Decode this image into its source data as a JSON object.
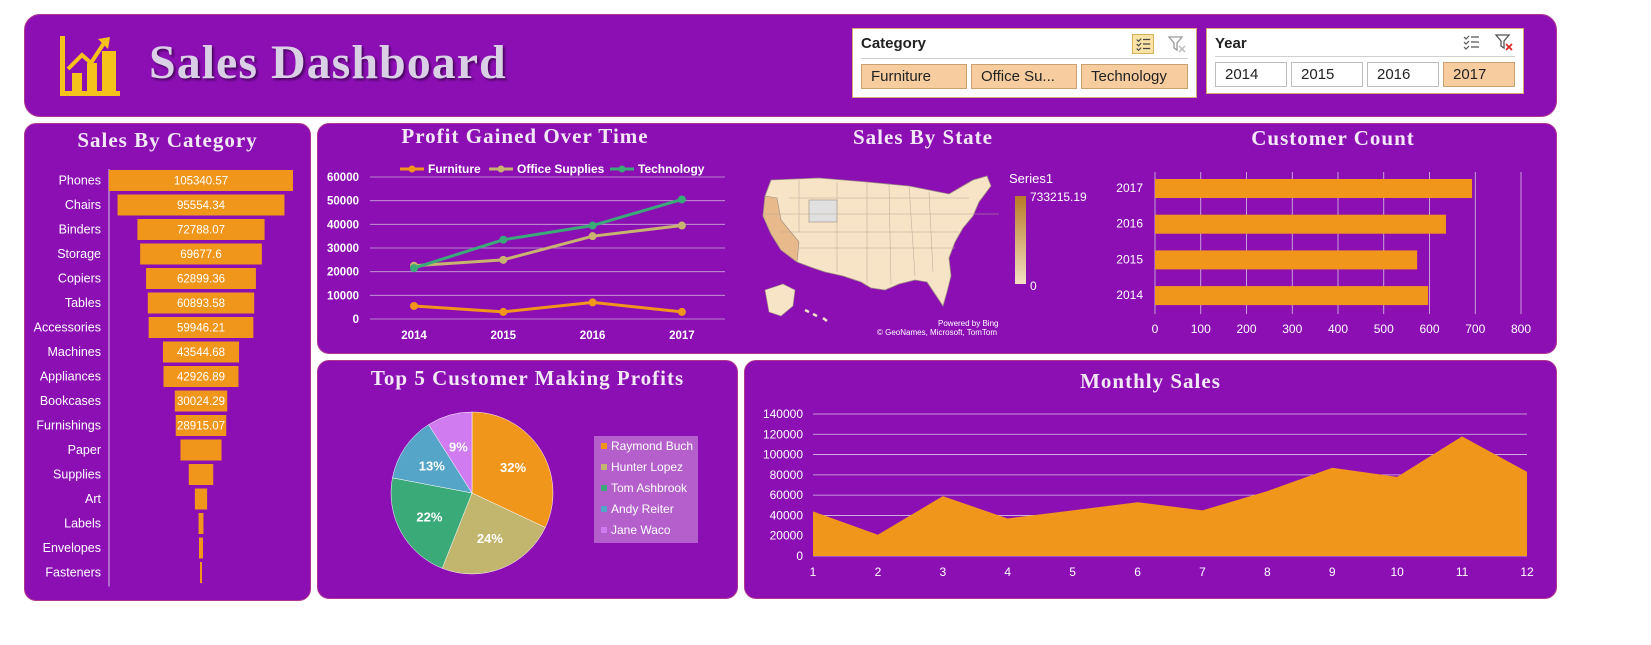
{
  "header": {
    "title": "Sales Dashboard"
  },
  "slicers": {
    "category": {
      "title": "Category",
      "items": [
        "Furniture",
        "Office Su...",
        "Technology"
      ]
    },
    "year": {
      "title": "Year",
      "items": [
        "2014",
        "2015",
        "2016",
        "2017"
      ],
      "selected": "2017"
    },
    "multi_select_icon": "multi-select-icon",
    "clear_filter_icon": "clear-filter-icon"
  },
  "colors": {
    "panel": "#8c0fb4",
    "orange": "#f0961b",
    "furniture": "#f0961b",
    "office_supplies": "#c8b46e",
    "technology": "#3aaa78"
  },
  "sales_by_category": {
    "title": "Sales By Category",
    "chart_data": {
      "type": "bar",
      "categories": [
        "Phones",
        "Chairs",
        "Binders",
        "Storage",
        "Copiers",
        "Tables",
        "Accessories",
        "Machines",
        "Appliances",
        "Bookcases",
        "Furnishings",
        "Paper",
        "Supplies",
        "Art",
        "Labels",
        "Envelopes",
        "Fasteners"
      ],
      "values": [
        105340.57,
        95554.34,
        72788.07,
        69677.6,
        62899.36,
        60893.58,
        59946.21,
        43544.68,
        42926.89,
        30024.29,
        28915.07,
        23500,
        14000,
        7000,
        2800,
        2300,
        600
      ],
      "labels": [
        "105340.57",
        "95554.34",
        "72788.07",
        "69677.6",
        "62899.36",
        "60893.58",
        "59946.21",
        "43544.68",
        "42926.89",
        "30024.29",
        "28915.07",
        "",
        "",
        "",
        "",
        "",
        ""
      ]
    }
  },
  "profit_over_time": {
    "title": "Profit Gained Over Time",
    "chart_data": {
      "type": "line",
      "x": [
        "2014",
        "2015",
        "2016",
        "2017"
      ],
      "series": [
        {
          "name": "Furniture",
          "values": [
            5500,
            3000,
            7000,
            3000
          ]
        },
        {
          "name": "Office Supplies",
          "values": [
            22500,
            25000,
            35000,
            39500
          ]
        },
        {
          "name": "Technology",
          "values": [
            21500,
            33500,
            39500,
            50500
          ]
        }
      ],
      "ylim": [
        0,
        60000
      ],
      "yticks": [
        "0",
        "10000",
        "20000",
        "30000",
        "40000",
        "50000",
        "60000"
      ],
      "legend": "top"
    }
  },
  "sales_by_state": {
    "title": "Sales By State",
    "legend_title": "Series1",
    "legend_max": "733215.19",
    "legend_min": "0",
    "credit1": "Powered by Bing",
    "credit2": "© GeoNames, Microsoft, TomTom"
  },
  "customer_count": {
    "title": "Customer Count",
    "chart_data": {
      "type": "bar",
      "categories": [
        "2017",
        "2016",
        "2015",
        "2014"
      ],
      "values": [
        693,
        636,
        573,
        597
      ],
      "xlim": [
        0,
        800
      ],
      "xticks": [
        "0",
        "100",
        "200",
        "300",
        "400",
        "500",
        "600",
        "700",
        "800"
      ]
    }
  },
  "top_customers": {
    "title": "Top 5 Customer Making Profits",
    "chart_data": {
      "type": "pie",
      "labels": [
        "Raymond Buch",
        "Hunter Lopez",
        "Tom Ashbrook",
        "Andy Reiter",
        "Jane Waco"
      ],
      "values": [
        32,
        24,
        22,
        13,
        9
      ],
      "pct_labels": [
        "32%",
        "24%",
        "22%",
        "13%",
        "9%"
      ],
      "colors": [
        "#f0961b",
        "#c2b56d",
        "#3aaa78",
        "#55a5c8",
        "#d07cf0"
      ]
    }
  },
  "monthly_sales": {
    "title": "Monthly Sales",
    "chart_data": {
      "type": "area",
      "x": [
        "1",
        "2",
        "3",
        "4",
        "5",
        "6",
        "7",
        "8",
        "9",
        "10",
        "11",
        "12"
      ],
      "values": [
        44000,
        21000,
        59000,
        37000,
        45000,
        53000,
        45000,
        64000,
        87000,
        78000,
        118000,
        83000
      ],
      "ylim": [
        0,
        140000
      ],
      "yticks": [
        "0",
        "20000",
        "40000",
        "60000",
        "80000",
        "100000",
        "120000",
        "140000"
      ]
    }
  }
}
